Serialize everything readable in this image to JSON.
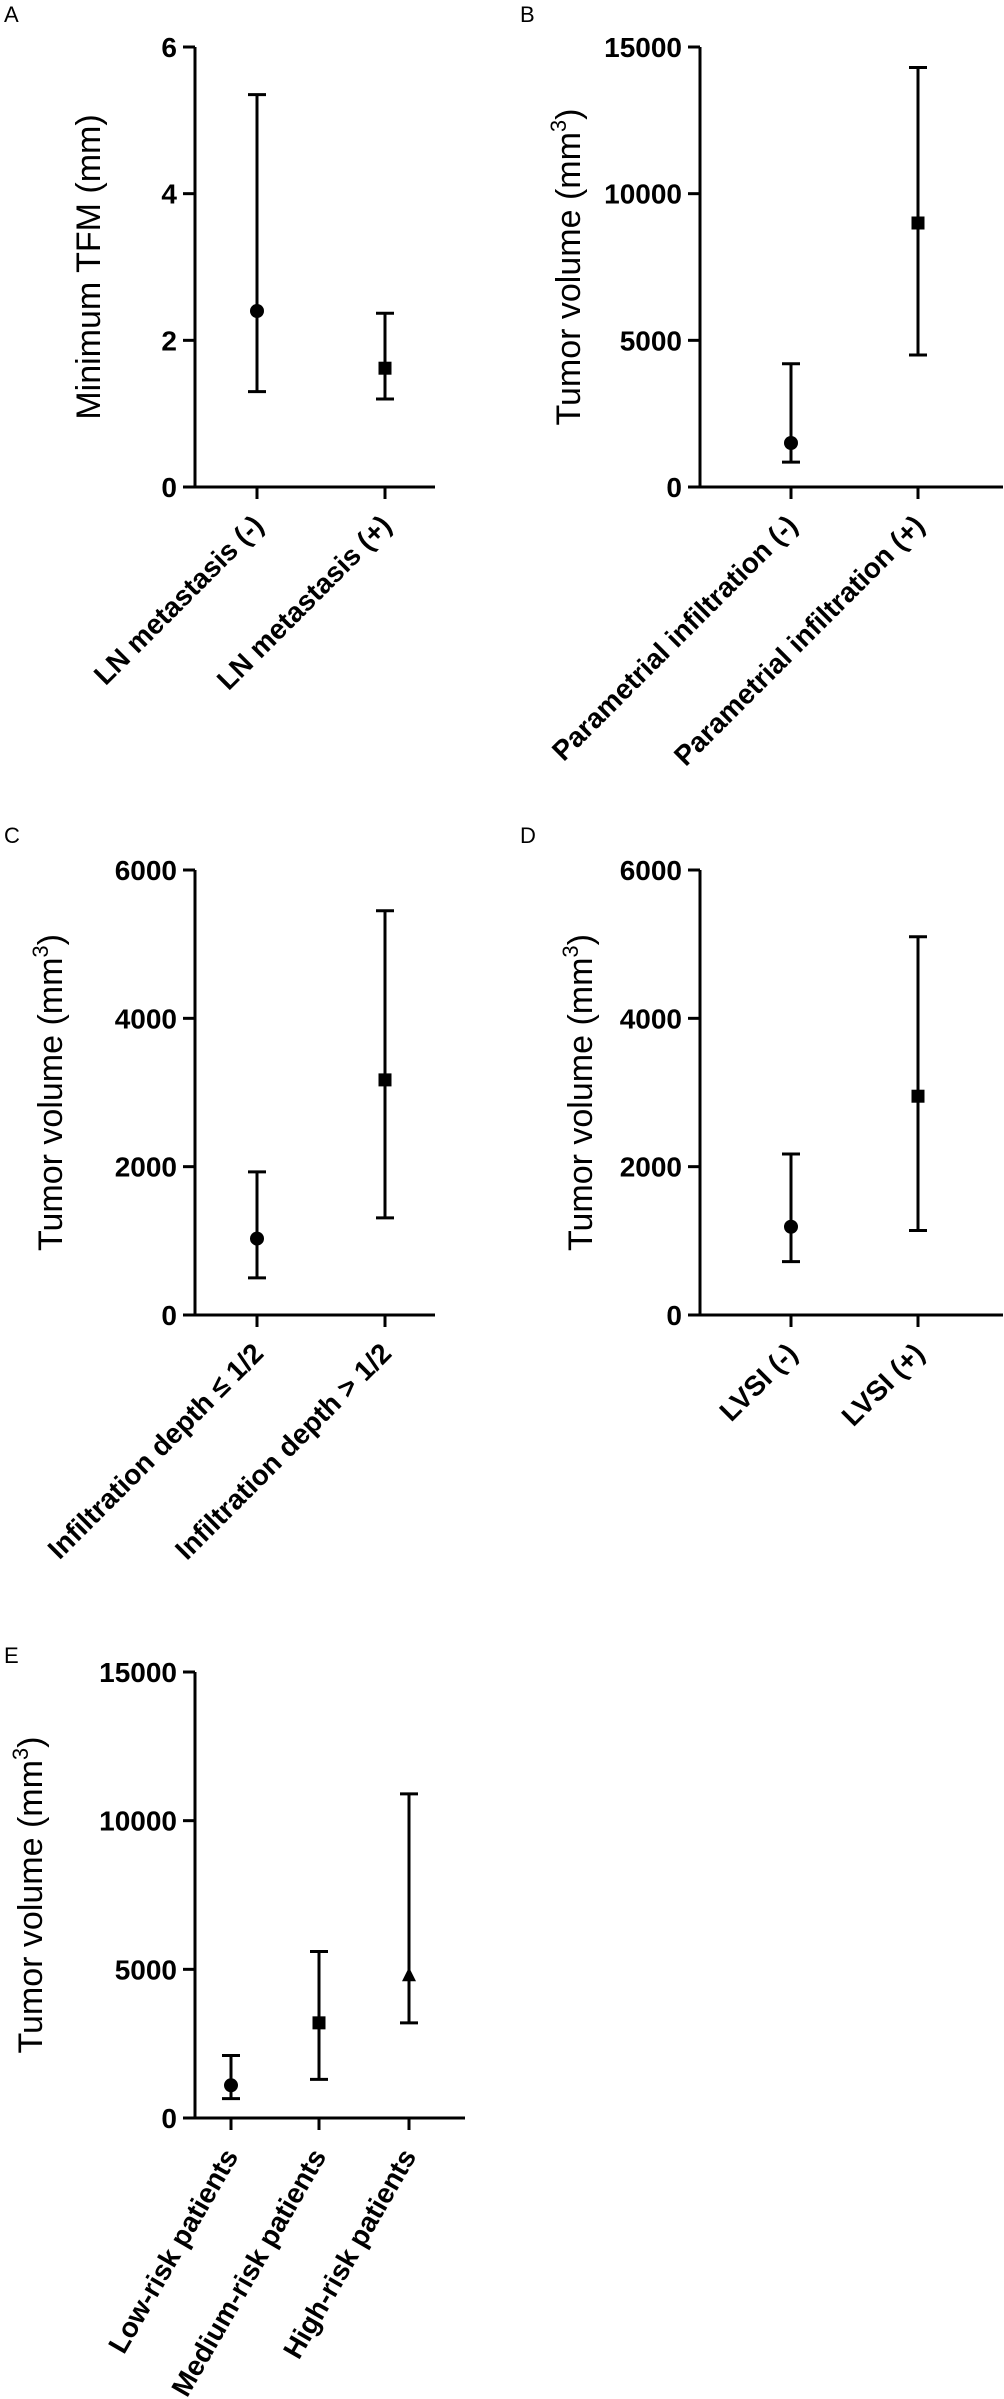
{
  "chart_data": [
    {
      "panel": "A",
      "type": "scatter",
      "ylabel": "Minimum TFM",
      "yunit": "(mm)",
      "yunit_sup": "",
      "ylim": [
        0,
        6
      ],
      "yticks": [
        0,
        2,
        4,
        6
      ],
      "categories": [
        "LN metastasis (-)",
        "LN metastasis (+)"
      ],
      "markers": [
        "circle",
        "square"
      ],
      "values": [
        2.4,
        1.62
      ],
      "error_low": [
        1.3,
        1.2
      ],
      "error_high": [
        5.35,
        2.37
      ]
    },
    {
      "panel": "B",
      "type": "scatter",
      "ylabel": "Tumor volume",
      "yunit": "(mm",
      "yunit_sup": "3",
      "yunit_close": ")",
      "ylim": [
        0,
        15000
      ],
      "yticks": [
        0,
        5000,
        10000,
        15000
      ],
      "categories": [
        "Parametrial infiltration (-)",
        "Parametrial infiltration (+)"
      ],
      "markers": [
        "circle",
        "square"
      ],
      "values": [
        1500,
        9000
      ],
      "error_low": [
        850,
        4500
      ],
      "error_high": [
        4200,
        14300
      ]
    },
    {
      "panel": "C",
      "type": "scatter",
      "ylabel": "Tumor volume",
      "yunit": "(mm",
      "yunit_sup": "3",
      "yunit_close": ")",
      "ylim": [
        0,
        6000
      ],
      "yticks": [
        0,
        2000,
        4000,
        6000
      ],
      "categories": [
        "Infiltration depth ≤ 1/2",
        "Infiltration depth > 1/2"
      ],
      "markers": [
        "circle",
        "square"
      ],
      "values": [
        1030,
        3170
      ],
      "error_low": [
        500,
        1310
      ],
      "error_high": [
        1930,
        5450
      ]
    },
    {
      "panel": "D",
      "type": "scatter",
      "ylabel": "Tumor volume",
      "yunit": "(mm",
      "yunit_sup": "3",
      "yunit_close": ")",
      "ylim": [
        0,
        6000
      ],
      "yticks": [
        0,
        2000,
        4000,
        6000
      ],
      "categories": [
        "LVSI (-)",
        "LVSI (+)"
      ],
      "markers": [
        "circle",
        "square"
      ],
      "values": [
        1190,
        2950
      ],
      "error_low": [
        720,
        1140
      ],
      "error_high": [
        2170,
        5100
      ]
    },
    {
      "panel": "E",
      "type": "scatter",
      "ylabel": "Tumor volume",
      "yunit": "(mm",
      "yunit_sup": "3",
      "yunit_close": ")",
      "ylim": [
        0,
        15000
      ],
      "yticks": [
        0,
        5000,
        10000,
        15000
      ],
      "categories": [
        "Low-risk patients",
        "Medium-risk patients",
        "High-risk patients"
      ],
      "markers": [
        "circle",
        "square",
        "triangle"
      ],
      "values": [
        1100,
        3200,
        4800
      ],
      "error_low": [
        650,
        1300,
        3200
      ],
      "error_high": [
        2100,
        5600,
        10900
      ]
    }
  ]
}
